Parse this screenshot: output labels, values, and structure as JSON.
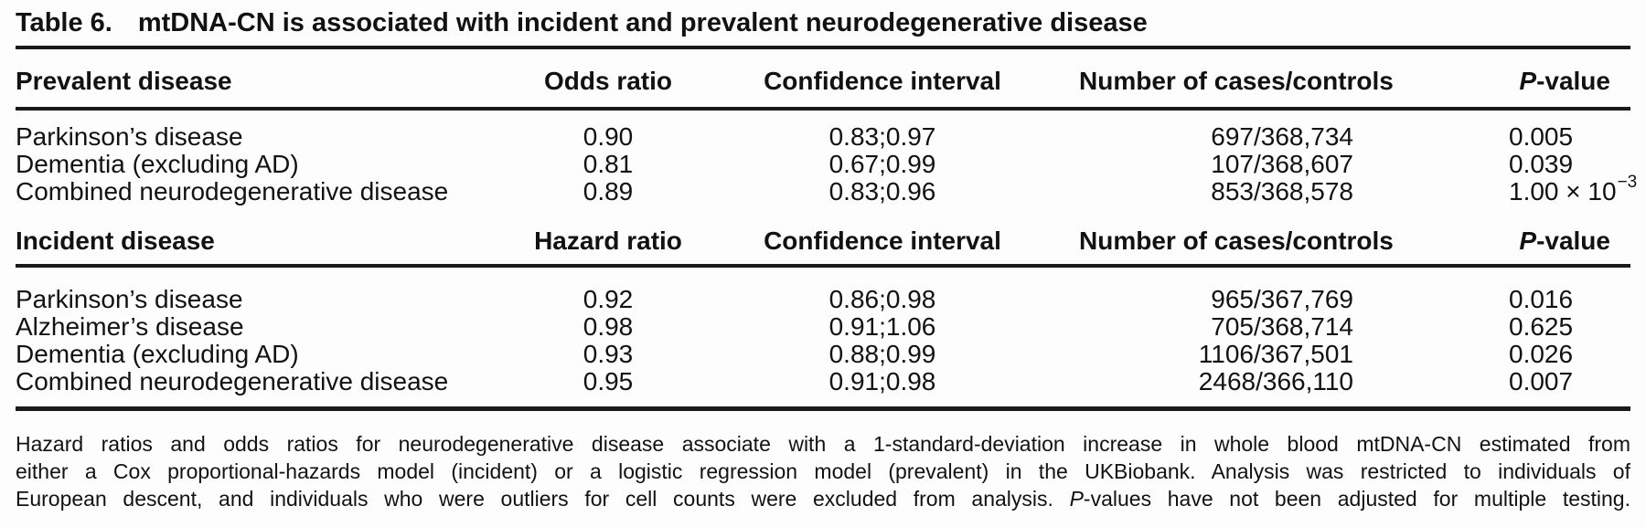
{
  "title": {
    "label": "Table 6.",
    "text": "mtDNA-CN is associated with incident and prevalent neurodegenerative disease"
  },
  "sections": [
    {
      "header": {
        "disease": "Prevalent disease",
        "ratio": "Odds ratio",
        "ci": "Confidence interval",
        "cases": "Number of cases/controls",
        "p": [
          {
            "t": "P",
            "i": true
          },
          {
            "t": "-value"
          }
        ]
      },
      "rows": [
        {
          "disease": "Parkinson’s disease",
          "ratio": "0.90",
          "ci": "0.83;0.97",
          "cases": "697/368,734",
          "p": [
            {
              "t": "0.005"
            }
          ]
        },
        {
          "disease": "Dementia (excluding AD)",
          "ratio": "0.81",
          "ci": "0.67;0.99",
          "cases": "107/368,607",
          "p": [
            {
              "t": "0.039"
            }
          ]
        },
        {
          "disease": "Combined neurodegenerative disease",
          "ratio": "0.89",
          "ci": "0.83;0.96",
          "cases": "853/368,578",
          "p": [
            {
              "t": "1.00 × 10"
            },
            {
              "t": "−3",
              "sup": true
            }
          ]
        }
      ]
    },
    {
      "header": {
        "disease": "Incident disease",
        "ratio": "Hazard ratio",
        "ci": "Confidence interval",
        "cases": "Number of cases/controls",
        "p": [
          {
            "t": "P",
            "i": true
          },
          {
            "t": "-value"
          }
        ]
      },
      "rows": [
        {
          "disease": "Parkinson’s disease",
          "ratio": "0.92",
          "ci": "0.86;0.98",
          "cases": "965/367,769",
          "p": [
            {
              "t": "0.016"
            }
          ]
        },
        {
          "disease": "Alzheimer’s disease",
          "ratio": "0.98",
          "ci": "0.91;1.06",
          "cases": "705/368,714",
          "p": [
            {
              "t": "0.625"
            }
          ]
        },
        {
          "disease": "Dementia (excluding AD)",
          "ratio": "0.93",
          "ci": "0.88;0.99",
          "cases": "1106/367,501",
          "p": [
            {
              "t": "0.026"
            }
          ]
        },
        {
          "disease": "Combined neurodegenerative disease",
          "ratio": "0.95",
          "ci": "0.91;0.98",
          "cases": "2468/366,110",
          "p": [
            {
              "t": "0.007"
            }
          ]
        }
      ]
    }
  ],
  "footnote": {
    "lines": [
      [
        {
          "t": "Hazard ratios and odds ratios for neurodegenerative disease associate with a 1-standard-deviation increase in whole blood mtDNA-CN estimated from"
        }
      ],
      [
        {
          "t": "either a Cox proportional-hazards model (incident) or a logistic regression model (prevalent) in the UKBiobank. Analysis was restricted to individuals of"
        }
      ],
      [
        {
          "t": "European descent, and individuals who were outliers for cell counts were excluded from analysis. "
        },
        {
          "t": "P",
          "i": true
        },
        {
          "t": "-values have not been adjusted for multiple testing."
        }
      ]
    ]
  }
}
